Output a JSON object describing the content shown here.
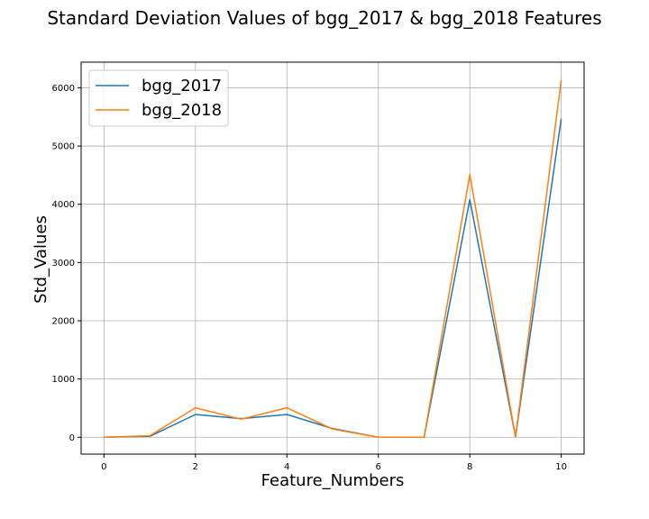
{
  "chart_data": {
    "type": "line",
    "title": "Standard Deviation Values of bgg_2017 & bgg_2018 Features",
    "xlabel": "Feature_Numbers",
    "ylabel": "Std_Values",
    "x": [
      0,
      1,
      2,
      3,
      4,
      5,
      6,
      7,
      8,
      9,
      10
    ],
    "xlim": [
      -0.5,
      10.5
    ],
    "ylim": [
      -290,
      6440
    ],
    "xticks": [
      0,
      2,
      4,
      6,
      8,
      10
    ],
    "yticks": [
      0,
      1000,
      2000,
      3000,
      4000,
      5000,
      6000
    ],
    "grid": true,
    "legend_position": "upper-left",
    "series": [
      {
        "name": "bgg_2017",
        "color": "#1f77b4",
        "values": [
          1,
          15,
          390,
          320,
          390,
          150,
          1,
          2,
          4080,
          5,
          5470
        ]
      },
      {
        "name": "bgg_2018",
        "color": "#ff7f0e",
        "values": [
          1,
          25,
          505,
          310,
          505,
          140,
          1,
          2,
          4510,
          5,
          6130
        ]
      }
    ]
  }
}
